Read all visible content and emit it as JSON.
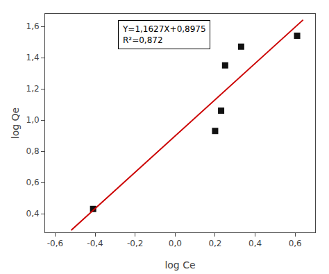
{
  "chart_data": {
    "type": "scatter",
    "xlabel": "log Ce",
    "ylabel": "log Qe",
    "series": [
      {
        "type": "scatter",
        "color": "#111111",
        "marker": "square",
        "x": [
          -0.41,
          0.2,
          0.23,
          0.25,
          0.33,
          0.61
        ],
        "values": [
          0.43,
          0.93,
          1.06,
          1.35,
          1.47,
          1.54
        ]
      },
      {
        "type": "line",
        "color": "#cc0000",
        "line_style": "solid",
        "x": [
          -0.52,
          0.64
        ],
        "values": [
          0.292896,
          1.641628
        ]
      }
    ],
    "xlim": [
      -0.65,
      0.7
    ],
    "ylim": [
      0.28,
      1.68
    ],
    "xticks": [
      {
        "value": -0.6,
        "label": "-0,6"
      },
      {
        "value": -0.4,
        "label": "-0,4"
      },
      {
        "value": -0.2,
        "label": "-0,2"
      },
      {
        "value": 0.0,
        "label": "0,0"
      },
      {
        "value": 0.2,
        "label": "0,2"
      },
      {
        "value": 0.4,
        "label": "0,4"
      },
      {
        "value": 0.6,
        "label": "0,6"
      }
    ],
    "yticks": [
      {
        "value": 0.4,
        "label": "0,4"
      },
      {
        "value": 0.6,
        "label": "0,6"
      },
      {
        "value": 0.8,
        "label": "0,8"
      },
      {
        "value": 1.0,
        "label": "1,0"
      },
      {
        "value": 1.2,
        "label": "1,2"
      },
      {
        "value": 1.4,
        "label": "1,4"
      },
      {
        "value": 1.6,
        "label": "1,6"
      }
    ],
    "annotations": [
      "Y=1,1627X+0,8975",
      "R²=0,872"
    ],
    "grid": false
  }
}
